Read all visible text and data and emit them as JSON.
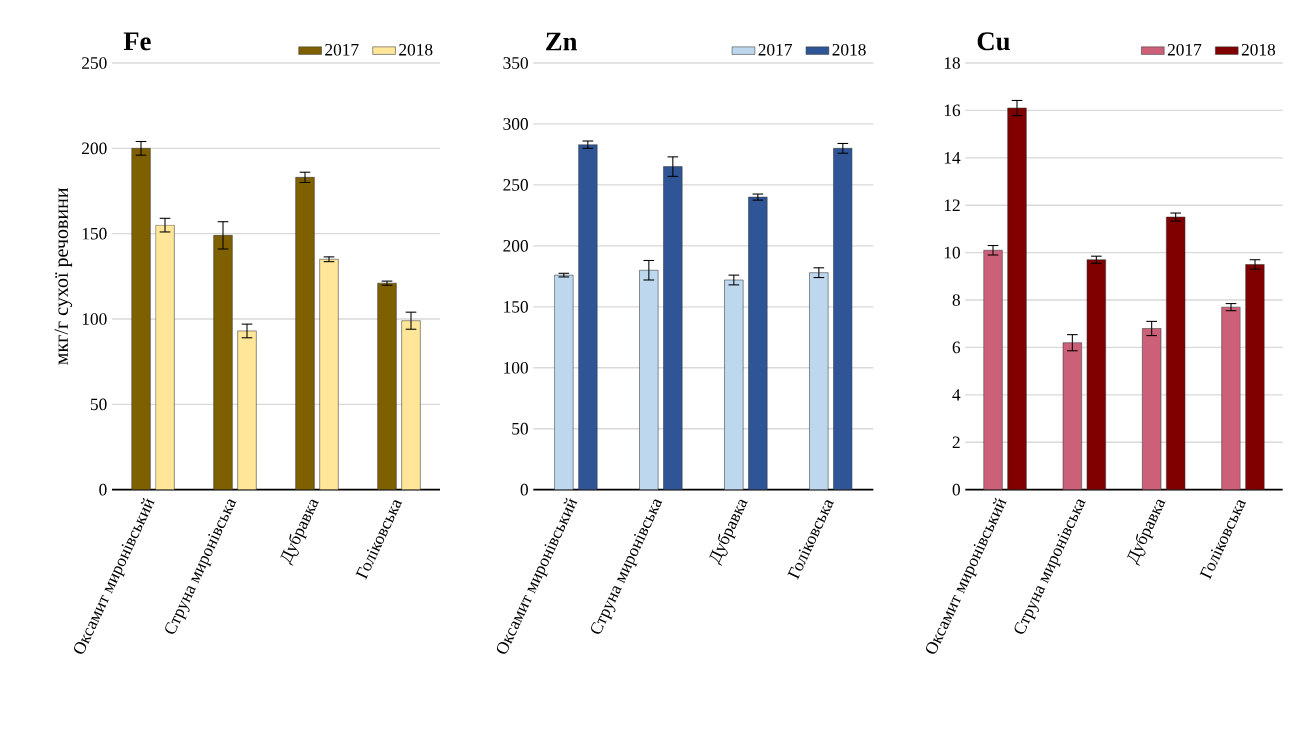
{
  "chart_data": [
    {
      "type": "bar",
      "title": "Fe",
      "ylabel": "мкг/г сухої речовини",
      "categories": [
        "Оксамит миронівський",
        "Струна миронівська",
        "Дубравка",
        "Голіковська"
      ],
      "series": [
        {
          "name": "2017",
          "color": "#7f6000",
          "values": [
            200,
            149,
            183,
            121
          ],
          "errors": [
            4,
            8,
            3,
            1.2
          ]
        },
        {
          "name": "2018",
          "color": "#ffe699",
          "values": [
            155,
            93,
            135,
            99
          ],
          "errors": [
            4,
            4,
            1.4,
            5
          ]
        }
      ],
      "ylim": [
        0,
        250
      ],
      "yticks": [
        0,
        50,
        100,
        150,
        200,
        250
      ],
      "grid": "y",
      "legend": "top right"
    },
    {
      "type": "bar",
      "title": "Zn",
      "categories": [
        "Оксамит миронівський",
        "Струна миронівська",
        "Дубравка",
        "Голіковська"
      ],
      "series": [
        {
          "name": "2017",
          "color": "#bdd7ee",
          "values": [
            176,
            180,
            172,
            178
          ],
          "errors": [
            1.5,
            8,
            4,
            4
          ]
        },
        {
          "name": "2018",
          "color": "#2f5597",
          "values": [
            283,
            265,
            240,
            280
          ],
          "errors": [
            3,
            8,
            2.5,
            4
          ]
        }
      ],
      "ylim": [
        0,
        350
      ],
      "yticks": [
        0,
        50,
        100,
        150,
        200,
        250,
        300,
        350
      ],
      "grid": "y",
      "legend": "top right"
    },
    {
      "type": "bar",
      "title": "Cu",
      "categories": [
        "Оксамит миронівський",
        "Струна миронівська",
        "Дубравка",
        "Голіковська"
      ],
      "series": [
        {
          "name": "2017",
          "color": "#cc6078",
          "values": [
            10.1,
            6.2,
            6.8,
            7.7
          ],
          "errors": [
            0.2,
            0.34,
            0.3,
            0.15
          ]
        },
        {
          "name": "2018",
          "color": "#800000",
          "values": [
            16.1,
            9.7,
            11.5,
            9.5
          ],
          "errors": [
            0.32,
            0.15,
            0.17,
            0.2
          ]
        }
      ],
      "ylim": [
        0,
        18
      ],
      "yticks": [
        0,
        2,
        4,
        6,
        8,
        10,
        12,
        14,
        16,
        18
      ],
      "grid": "y",
      "legend": "top right"
    }
  ]
}
